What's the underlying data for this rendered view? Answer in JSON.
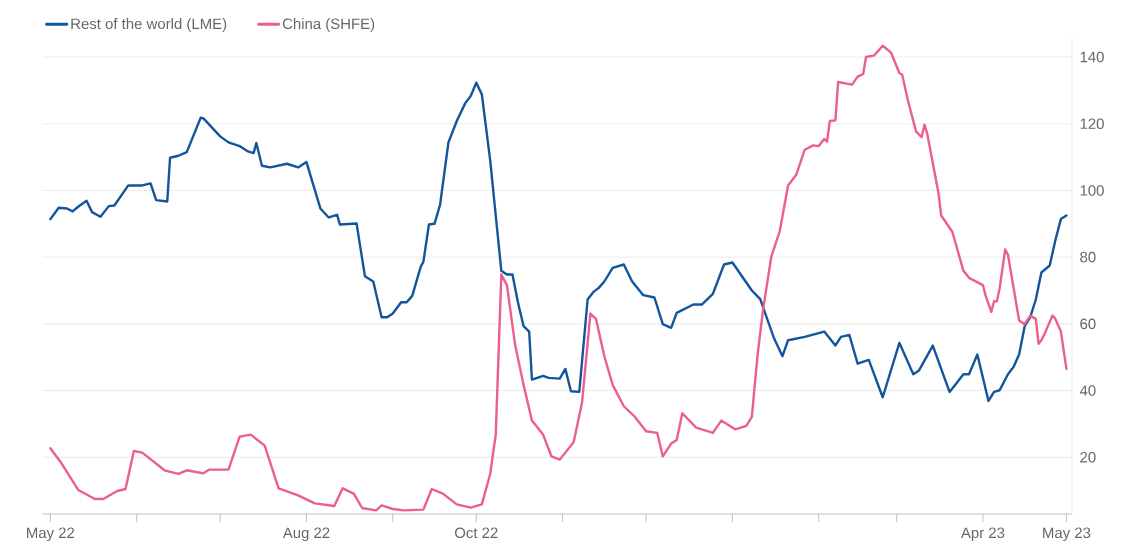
{
  "chart_data": {
    "type": "line",
    "legend": "top left",
    "grid": "y",
    "marker": "none",
    "line_style": "solid",
    "xlim": [
      "2022-04-28",
      "2023-05-03"
    ],
    "ylim": [
      3,
      146
    ],
    "xticks": [
      {
        "value": "2022-05-01",
        "label": "May 22"
      },
      {
        "value": "2022-06-01",
        "label": null
      },
      {
        "value": "2022-07-01",
        "label": null
      },
      {
        "value": "2022-08-01",
        "label": "Aug 22"
      },
      {
        "value": "2022-09-01",
        "label": null
      },
      {
        "value": "2022-10-01",
        "label": "Oct 22"
      },
      {
        "value": "2022-11-01",
        "label": null
      },
      {
        "value": "2022-12-01",
        "label": null
      },
      {
        "value": "2023-01-01",
        "label": null
      },
      {
        "value": "2023-02-01",
        "label": null
      },
      {
        "value": "2023-03-01",
        "label": null
      },
      {
        "value": "2023-04-01",
        "label": "Apr 23"
      },
      {
        "value": "2023-05-01",
        "label": "May 23"
      }
    ],
    "yticks": [
      20,
      40,
      60,
      80,
      100,
      120,
      140
    ],
    "series": [
      {
        "name": "Rest of the world (LME)",
        "color": "#12559c",
        "x": [
          "2022-05-01",
          "2022-05-04",
          "2022-05-07",
          "2022-05-09",
          "2022-05-11",
          "2022-05-14",
          "2022-05-16",
          "2022-05-19",
          "2022-05-22",
          "2022-05-24",
          "2022-05-29",
          "2022-06-03",
          "2022-06-06",
          "2022-06-08",
          "2022-06-12",
          "2022-06-13",
          "2022-06-16",
          "2022-06-19",
          "2022-06-24",
          "2022-06-25",
          "2022-07-01",
          "2022-07-04",
          "2022-07-08",
          "2022-07-11",
          "2022-07-13",
          "2022-07-14",
          "2022-07-16",
          "2022-07-19",
          "2022-07-25",
          "2022-07-29",
          "2022-08-01",
          "2022-08-06",
          "2022-08-09",
          "2022-08-12",
          "2022-08-13",
          "2022-08-19",
          "2022-08-22",
          "2022-08-25",
          "2022-08-28",
          "2022-08-30",
          "2022-09-01",
          "2022-09-04",
          "2022-09-06",
          "2022-09-08",
          "2022-09-11",
          "2022-09-12",
          "2022-09-14",
          "2022-09-16",
          "2022-09-18",
          "2022-09-21",
          "2022-09-24",
          "2022-09-27",
          "2022-09-29",
          "2022-10-01",
          "2022-10-03",
          "2022-10-06",
          "2022-10-10",
          "2022-10-12",
          "2022-10-14",
          "2022-10-16",
          "2022-10-18",
          "2022-10-20",
          "2022-10-21",
          "2022-10-25",
          "2022-10-27",
          "2022-10-31",
          "2022-11-02",
          "2022-11-04",
          "2022-11-07",
          "2022-11-10",
          "2022-11-12",
          "2022-11-14",
          "2022-11-16",
          "2022-11-19",
          "2022-11-23",
          "2022-11-26",
          "2022-11-30",
          "2022-12-04",
          "2022-12-07",
          "2022-12-10",
          "2022-12-12",
          "2022-12-18",
          "2022-12-21",
          "2022-12-25",
          "2022-12-29",
          "2023-01-01",
          "2023-01-08",
          "2023-01-11",
          "2023-01-16",
          "2023-01-19",
          "2023-01-21",
          "2023-01-27",
          "2023-02-03",
          "2023-02-07",
          "2023-02-09",
          "2023-02-12",
          "2023-02-15",
          "2023-02-19",
          "2023-02-24",
          "2023-03-02",
          "2023-03-07",
          "2023-03-09",
          "2023-03-14",
          "2023-03-20",
          "2023-03-22",
          "2023-03-25",
          "2023-03-27",
          "2023-03-30",
          "2023-04-03",
          "2023-04-05",
          "2023-04-07",
          "2023-04-10",
          "2023-04-12",
          "2023-04-14",
          "2023-04-16",
          "2023-04-18",
          "2023-04-20",
          "2023-04-22",
          "2023-04-25",
          "2023-04-27",
          "2023-04-29",
          "2023-05-01"
        ],
        "values": [
          91.4,
          94.8,
          94.6,
          93.7,
          95.1,
          96.9,
          93.5,
          92.1,
          95.3,
          95.5,
          101.5,
          101.5,
          102.1,
          97.1,
          96.7,
          109.8,
          110.4,
          111.5,
          121.8,
          121.6,
          116.2,
          114.4,
          113.3,
          111.7,
          111.2,
          114.2,
          107.4,
          106.9,
          108.0,
          106.9,
          108.5,
          94.6,
          91.9,
          92.7,
          89.8,
          90.1,
          74.3,
          72.7,
          62.0,
          62.0,
          63.1,
          66.5,
          66.5,
          68.4,
          77.0,
          78.6,
          89.8,
          90.0,
          95.7,
          114.4,
          120.8,
          126.1,
          128.3,
          132.3,
          128.8,
          109.0,
          75.9,
          74.8,
          74.8,
          66.3,
          59.3,
          57.7,
          43.3,
          44.4,
          43.8,
          43.6,
          46.5,
          39.8,
          39.6,
          67.3,
          69.5,
          70.8,
          72.7,
          76.8,
          77.8,
          72.7,
          68.6,
          67.9,
          59.9,
          58.8,
          63.3,
          65.8,
          65.8,
          69.0,
          77.8,
          78.4,
          70.0,
          67.4,
          55.6,
          50.3,
          55.1,
          56.1,
          57.7,
          53.5,
          56.1,
          56.7,
          48.1,
          49.2,
          38.0,
          54.3,
          44.9,
          46.0,
          53.5,
          39.6,
          41.7,
          44.9,
          44.9,
          50.8,
          36.9,
          39.6,
          40.1,
          44.9,
          47.1,
          50.8,
          59.3,
          62.0,
          67.3,
          75.4,
          77.5,
          85.0,
          91.4,
          92.5
        ]
      },
      {
        "name": "China (SHFE)",
        "color": "#ec5f8c",
        "x": [
          "2022-05-01",
          "2022-05-05",
          "2022-05-11",
          "2022-05-17",
          "2022-05-20",
          "2022-05-25",
          "2022-05-28",
          "2022-05-31",
          "2022-06-03",
          "2022-06-11",
          "2022-06-16",
          "2022-06-19",
          "2022-06-25",
          "2022-06-27",
          "2022-07-04",
          "2022-07-08",
          "2022-07-12",
          "2022-07-17",
          "2022-07-22",
          "2022-07-29",
          "2022-08-04",
          "2022-08-11",
          "2022-08-14",
          "2022-08-18",
          "2022-08-21",
          "2022-08-26",
          "2022-08-28",
          "2022-09-01",
          "2022-09-05",
          "2022-09-12",
          "2022-09-15",
          "2022-09-19",
          "2022-09-24",
          "2022-09-29",
          "2022-10-03",
          "2022-10-06",
          "2022-10-08",
          "2022-10-10",
          "2022-10-12",
          "2022-10-15",
          "2022-10-18",
          "2022-10-21",
          "2022-10-25",
          "2022-10-28",
          "2022-10-31",
          "2022-11-02",
          "2022-11-05",
          "2022-11-08",
          "2022-11-11",
          "2022-11-13",
          "2022-11-16",
          "2022-11-19",
          "2022-11-23",
          "2022-11-27",
          "2022-12-01",
          "2022-12-05",
          "2022-12-07",
          "2022-12-10",
          "2022-12-12",
          "2022-12-14",
          "2022-12-19",
          "2022-12-25",
          "2022-12-28",
          "2023-01-02",
          "2023-01-06",
          "2023-01-08",
          "2023-01-10",
          "2023-01-12",
          "2023-01-15",
          "2023-01-18",
          "2023-01-21",
          "2023-01-24",
          "2023-01-27",
          "2023-01-30",
          "2023-02-01",
          "2023-02-03",
          "2023-02-04",
          "2023-02-05",
          "2023-02-07",
          "2023-02-08",
          "2023-02-11",
          "2023-02-13",
          "2023-02-15",
          "2023-02-17",
          "2023-02-18",
          "2023-02-21",
          "2023-02-24",
          "2023-02-27",
          "2023-03-02",
          "2023-03-03",
          "2023-03-05",
          "2023-03-08",
          "2023-03-10",
          "2023-03-11",
          "2023-03-12",
          "2023-03-16",
          "2023-03-17",
          "2023-03-21",
          "2023-03-25",
          "2023-03-27",
          "2023-04-01",
          "2023-04-02",
          "2023-04-04",
          "2023-04-05",
          "2023-04-06",
          "2023-04-07",
          "2023-04-09",
          "2023-04-10",
          "2023-04-14",
          "2023-04-16",
          "2023-04-18",
          "2023-04-20",
          "2023-04-21",
          "2023-04-22",
          "2023-04-23",
          "2023-04-26",
          "2023-04-27",
          "2023-04-29",
          "2023-05-01"
        ],
        "values": [
          22.7,
          18.2,
          10.2,
          7.5,
          7.5,
          9.9,
          10.5,
          21.9,
          21.4,
          16.1,
          15.0,
          16.1,
          15.2,
          16.3,
          16.3,
          26.2,
          26.8,
          23.5,
          10.7,
          8.6,
          6.2,
          5.4,
          10.7,
          9.1,
          4.8,
          4.1,
          5.6,
          4.5,
          4.1,
          4.3,
          10.5,
          9.1,
          5.9,
          4.9,
          5.9,
          15.0,
          26.8,
          74.8,
          71.6,
          53.5,
          41.7,
          31.0,
          26.8,
          20.3,
          19.3,
          21.4,
          24.6,
          36.4,
          63.1,
          61.5,
          50.3,
          41.7,
          35.3,
          32.1,
          27.8,
          27.3,
          20.3,
          24.1,
          25.2,
          33.2,
          28.9,
          27.3,
          31.0,
          28.4,
          29.4,
          32.1,
          50.3,
          64.1,
          80.2,
          87.7,
          101.5,
          104.8,
          112.2,
          113.5,
          113.3,
          115.4,
          114.6,
          120.8,
          121.0,
          132.5,
          132.0,
          131.7,
          134.1,
          134.9,
          140.0,
          140.5,
          143.4,
          141.3,
          135.2,
          134.7,
          127.2,
          117.6,
          116.0,
          119.7,
          117.0,
          99.4,
          92.5,
          87.6,
          75.9,
          73.8,
          71.6,
          68.4,
          63.6,
          66.8,
          66.8,
          70.6,
          82.3,
          80.7,
          61.0,
          59.9,
          62.5,
          61.5,
          54.0,
          55.1,
          56.7,
          62.5,
          61.5,
          57.7,
          46.5
        ]
      }
    ]
  }
}
